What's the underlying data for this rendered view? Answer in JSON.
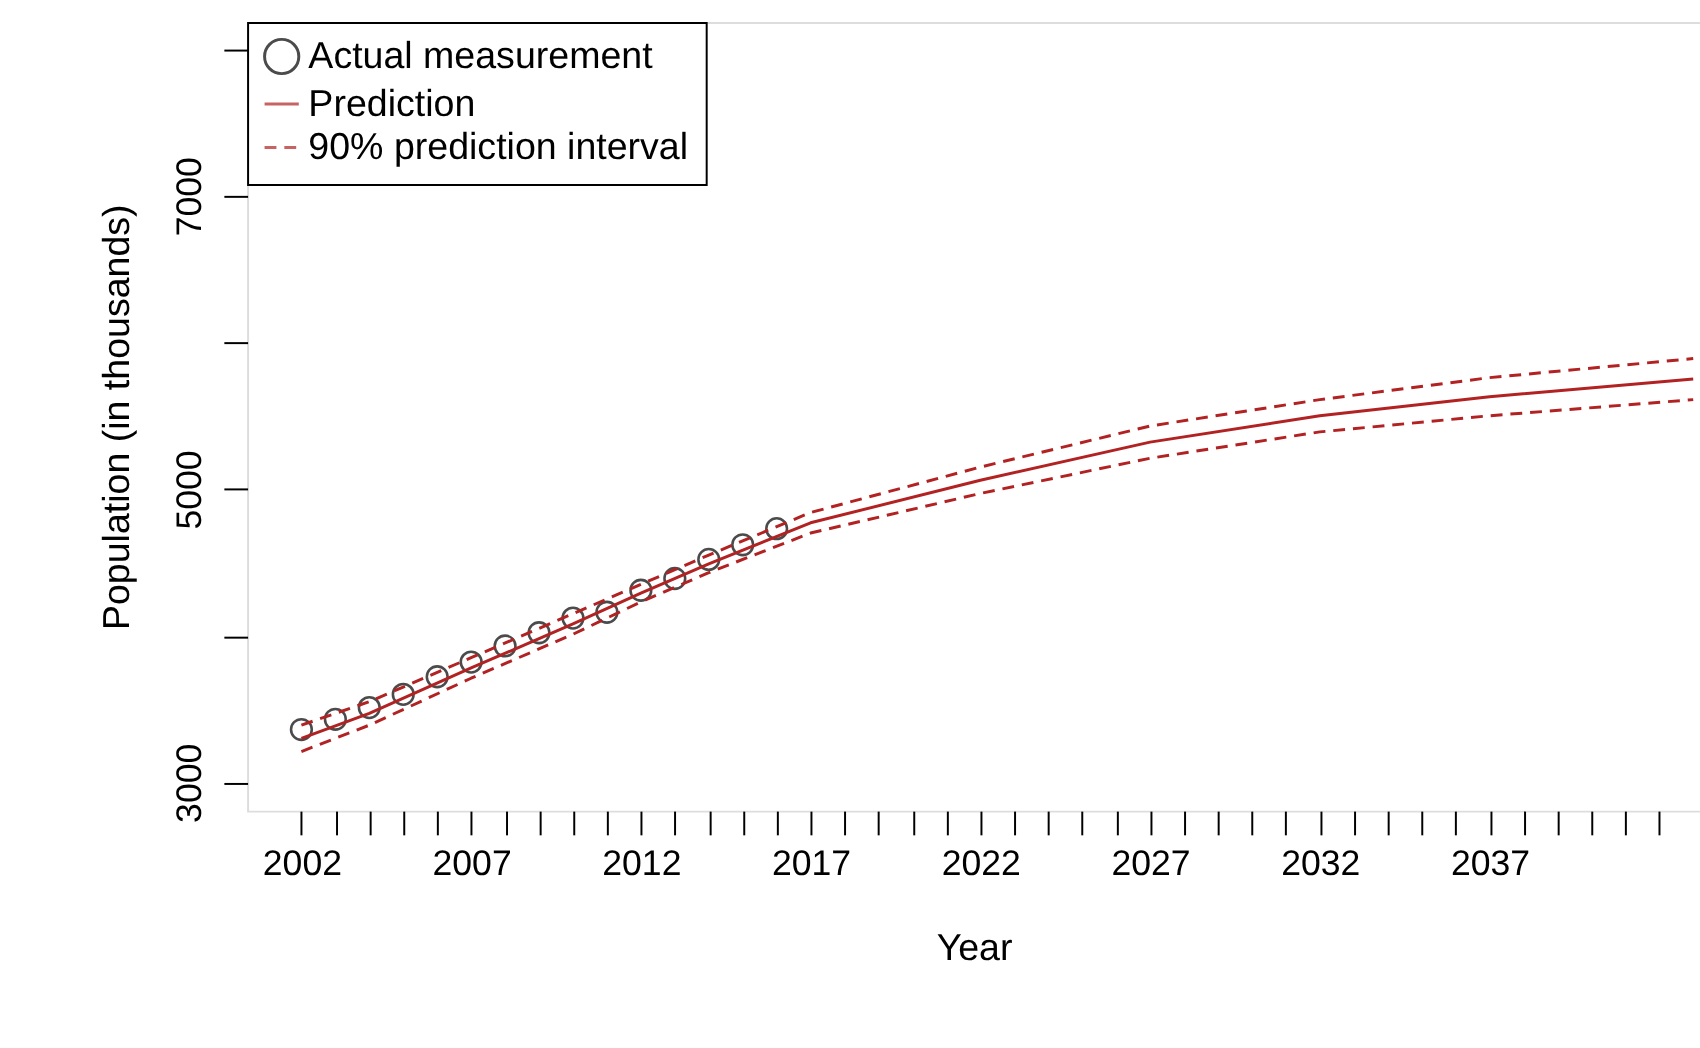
{
  "chart_data": {
    "type": "line",
    "xlabel": "Year",
    "ylabel": "Population (in thousands)",
    "xlim": [
      2000.4,
      2043.2
    ],
    "ylim": [
      2807,
      8186
    ],
    "xticks": [
      2002,
      {
        "value": 2003,
        "label": null
      },
      {
        "value": 2004,
        "label": null
      },
      {
        "value": 2005,
        "label": null
      },
      {
        "value": 2006,
        "label": null
      },
      2007,
      {
        "value": 2008,
        "label": null
      },
      {
        "value": 2009,
        "label": null
      },
      {
        "value": 2010,
        "label": null
      },
      {
        "value": 2011,
        "label": null
      },
      2012,
      {
        "value": 2013,
        "label": null
      },
      {
        "value": 2014,
        "label": null
      },
      {
        "value": 2015,
        "label": null
      },
      {
        "value": 2016,
        "label": null
      },
      2017,
      {
        "value": 2018,
        "label": null
      },
      {
        "value": 2019,
        "label": null
      },
      {
        "value": 2020,
        "label": null
      },
      {
        "value": 2021,
        "label": null
      },
      2022,
      {
        "value": 2023,
        "label": null
      },
      {
        "value": 2024,
        "label": null
      },
      {
        "value": 2025,
        "label": null
      },
      {
        "value": 2026,
        "label": null
      },
      2027,
      {
        "value": 2028,
        "label": null
      },
      {
        "value": 2029,
        "label": null
      },
      {
        "value": 2030,
        "label": null
      },
      {
        "value": 2031,
        "label": null
      },
      2032,
      {
        "value": 2033,
        "label": null
      },
      {
        "value": 2034,
        "label": null
      },
      {
        "value": 2035,
        "label": null
      },
      {
        "value": 2036,
        "label": null
      },
      2037,
      {
        "value": 2038,
        "label": null
      },
      {
        "value": 2039,
        "label": null
      },
      {
        "value": 2040,
        "label": null
      },
      {
        "value": 2041,
        "label": null
      },
      {
        "value": 2042,
        "label": null
      }
    ],
    "yticks": [
      3000,
      {
        "value": 4000,
        "label": null
      },
      5000,
      {
        "value": 6000,
        "label": null
      },
      7000,
      {
        "value": 8000,
        "label": null
      }
    ],
    "grid": false,
    "legend": "top left",
    "series": [
      {
        "name": "Actual measurement",
        "type": "scatter",
        "marker": "circle",
        "color": "#000000",
        "x": [
          2002,
          2003,
          2004,
          2005,
          2006,
          2007,
          2008,
          2009,
          2010,
          2011,
          2012,
          2013,
          2014,
          2015,
          2016
        ],
        "values": [
          3360,
          3430,
          3510,
          3600,
          3720,
          3820,
          3930,
          4020,
          4120,
          4160,
          4310,
          4390,
          4520,
          4620,
          4730
        ]
      },
      {
        "name": "Prediction",
        "line_style": "solid",
        "color": "#b22222",
        "x": [
          2002,
          2004,
          2007,
          2010,
          2012,
          2014,
          2017,
          2022,
          2027,
          2032,
          2037,
          2043
        ],
        "values": [
          3300,
          3470,
          3780,
          4080,
          4290,
          4490,
          4770,
          5060,
          5320,
          5500,
          5630,
          5750
        ]
      },
      {
        "name": "90% prediction interval",
        "line_style": "dashed",
        "color": "#b22222",
        "x": [
          2002,
          2004,
          2007,
          2010,
          2012,
          2014,
          2017,
          2022,
          2027,
          2032,
          2037,
          2043
        ],
        "values": [
          3390,
          3550,
          3850,
          4150,
          4350,
          4550,
          4840,
          5150,
          5430,
          5610,
          5760,
          5890
        ]
      },
      {
        "line_style": "dashed",
        "color": "#b22222",
        "x": [
          2002,
          2004,
          2007,
          2010,
          2012,
          2014,
          2017,
          2022,
          2027,
          2032,
          2037,
          2043
        ],
        "values": [
          3210,
          3390,
          3710,
          4010,
          4230,
          4430,
          4700,
          4970,
          5210,
          5390,
          5500,
          5610
        ]
      }
    ]
  }
}
